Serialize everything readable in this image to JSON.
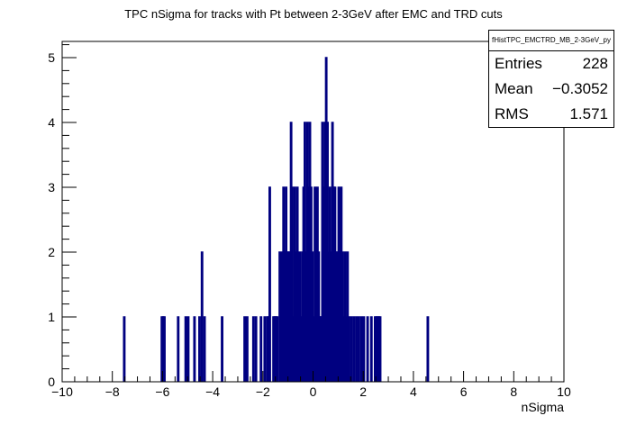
{
  "chart_data": {
    "type": "bar",
    "title": "TPC nSigma for tracks with Pt between 2-3GeV after EMC and TRD cuts",
    "xlabel": "nSigma",
    "ylabel": "",
    "xlim": [
      -10,
      10
    ],
    "ylim": [
      0,
      5.25
    ],
    "x_ticks": [
      "−10",
      "−8",
      "−6",
      "−4",
      "−2",
      "0",
      "2",
      "4",
      "6",
      "8",
      "10"
    ],
    "y_ticks": [
      "0",
      "1",
      "2",
      "3",
      "4",
      "5"
    ],
    "bin_width": 0.05,
    "bins": [
      [
        -7.55,
        1
      ],
      [
        -6.05,
        1
      ],
      [
        -6.0,
        1
      ],
      [
        -5.95,
        1
      ],
      [
        -5.4,
        1
      ],
      [
        -5.1,
        1
      ],
      [
        -5.0,
        1
      ],
      [
        -4.75,
        1
      ],
      [
        -4.55,
        1
      ],
      [
        -4.45,
        2
      ],
      [
        -4.35,
        1
      ],
      [
        -3.65,
        1
      ],
      [
        -2.75,
        1
      ],
      [
        -2.65,
        1
      ],
      [
        -2.4,
        1
      ],
      [
        -2.3,
        1
      ],
      [
        -2.1,
        1
      ],
      [
        -1.95,
        1
      ],
      [
        -1.85,
        1
      ],
      [
        -1.8,
        1
      ],
      [
        -1.75,
        3
      ],
      [
        -1.6,
        1
      ],
      [
        -1.55,
        1
      ],
      [
        -1.5,
        1
      ],
      [
        -1.45,
        1
      ],
      [
        -1.35,
        2
      ],
      [
        -1.25,
        2
      ],
      [
        -1.2,
        3
      ],
      [
        -1.15,
        2
      ],
      [
        -1.1,
        3
      ],
      [
        -1.05,
        2
      ],
      [
        -1.0,
        2
      ],
      [
        -0.95,
        2
      ],
      [
        -0.9,
        4
      ],
      [
        -0.85,
        3
      ],
      [
        -0.8,
        1
      ],
      [
        -0.75,
        3
      ],
      [
        -0.7,
        2
      ],
      [
        -0.65,
        3
      ],
      [
        -0.6,
        1
      ],
      [
        -0.55,
        2
      ],
      [
        -0.5,
        1
      ],
      [
        -0.45,
        2
      ],
      [
        -0.4,
        3
      ],
      [
        -0.35,
        4
      ],
      [
        -0.3,
        2
      ],
      [
        -0.25,
        4
      ],
      [
        -0.2,
        3
      ],
      [
        -0.15,
        4
      ],
      [
        -0.1,
        3
      ],
      [
        -0.05,
        2
      ],
      [
        0.0,
        1
      ],
      [
        0.05,
        3
      ],
      [
        0.1,
        2
      ],
      [
        0.15,
        3
      ],
      [
        0.2,
        2
      ],
      [
        0.25,
        1
      ],
      [
        0.3,
        1
      ],
      [
        0.35,
        4
      ],
      [
        0.4,
        3
      ],
      [
        0.45,
        4
      ],
      [
        0.5,
        5
      ],
      [
        0.55,
        4
      ],
      [
        0.6,
        2
      ],
      [
        0.65,
        3
      ],
      [
        0.7,
        2
      ],
      [
        0.75,
        4
      ],
      [
        0.8,
        3
      ],
      [
        0.85,
        3
      ],
      [
        0.9,
        2
      ],
      [
        0.95,
        2
      ],
      [
        1.0,
        3
      ],
      [
        1.05,
        2
      ],
      [
        1.1,
        3
      ],
      [
        1.15,
        2
      ],
      [
        1.2,
        1
      ],
      [
        1.25,
        2
      ],
      [
        1.3,
        1
      ],
      [
        1.35,
        2
      ],
      [
        1.4,
        1
      ],
      [
        1.5,
        1
      ],
      [
        1.6,
        1
      ],
      [
        1.7,
        1
      ],
      [
        1.8,
        1
      ],
      [
        1.9,
        1
      ],
      [
        2.0,
        1
      ],
      [
        2.15,
        1
      ],
      [
        2.3,
        1
      ],
      [
        2.45,
        1
      ],
      [
        2.5,
        1
      ],
      [
        2.55,
        1
      ],
      [
        2.6,
        1
      ],
      [
        2.65,
        1
      ],
      [
        4.55,
        1
      ]
    ]
  },
  "stats": {
    "name": "fHistTPC_EMCTRD_MB_2-3GeV_py",
    "entries_label": "Entries",
    "entries": "228",
    "mean_label": "Mean",
    "mean": "−0.3052",
    "rms_label": "RMS",
    "rms": "1.571"
  },
  "colors": {
    "bar": "#000080",
    "axis": "#000000"
  }
}
